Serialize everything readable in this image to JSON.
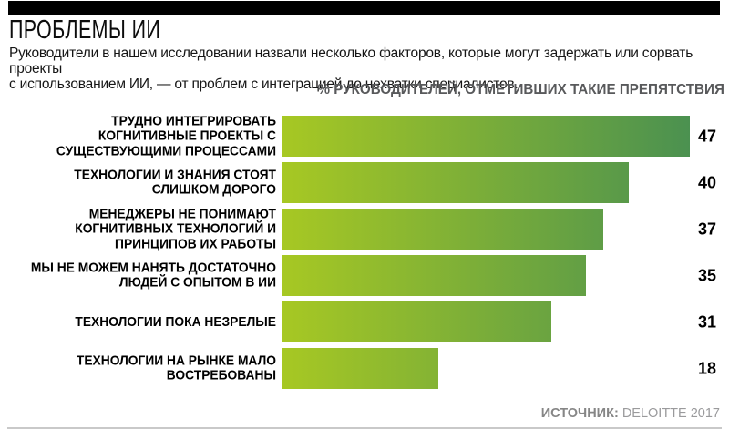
{
  "header": {
    "title": "ПРОБЛЕМЫ ИИ",
    "subtitle_lines": [
      "Руководители в нашем исследовании назвали несколько факторов, которые могут задержать или сорвать проекты",
      "с использованием ИИ, — от проблем с интеграцией до нехватки специалистов."
    ]
  },
  "chart_data": {
    "type": "bar",
    "orientation": "horizontal",
    "title": "ПРОБЛЕМЫ ИИ",
    "xlabel": "% РУКОВОДИТЕЛЕЙ, ОТМЕТИВШИХ ТАКИЕ ПРЕПЯТСТВИЯ",
    "xlim": [
      0,
      50
    ],
    "grid": false,
    "legend": false,
    "value_labels_position": "right-of-bars",
    "bar_gradient": [
      "#a7c823",
      "#4b9150"
    ],
    "categories": [
      "ТРУДНО ИНТЕГРИРОВАТЬ КОГНИТИВНЫЕ ПРОЕКТЫ С СУЩЕСТВУЮЩИМИ ПРОЦЕССАМИ",
      "ТЕХНОЛОГИИ И ЗНАНИЯ СТОЯТ СЛИШКОМ ДОРОГО",
      "МЕНЕДЖЕРЫ НЕ ПОНИМАЮТ КОГНИТИВНЫХ ТЕХНОЛОГИЙ И ПРИНЦИПОВ ИХ РАБОТЫ",
      "МЫ НЕ МОЖЕМ НАНЯТЬ ДОСТАТОЧНО ЛЮДЕЙ С ОПЫТОМ В ИИ",
      "ТЕХНОЛОГИИ ПОКА НЕЗРЕЛЫЕ",
      "ТЕХНОЛОГИИ НА РЫНКЕ МАЛО ВОСТРЕБОВАНЫ"
    ],
    "values": [
      47,
      40,
      37,
      35,
      31,
      18
    ],
    "rows": [
      {
        "label_lines": [
          "ТРУДНО ИНТЕГРИРОВАТЬ",
          "КОГНИТИВНЫЕ ПРОЕКТЫ С",
          "СУЩЕСТВУЮЩИМИ ПРОЦЕССАМИ"
        ],
        "value": "47"
      },
      {
        "label_lines": [
          "ТЕХНОЛОГИИ И ЗНАНИЯ СТОЯТ",
          "СЛИШКОМ ДОРОГО"
        ],
        "value": "40"
      },
      {
        "label_lines": [
          "МЕНЕДЖЕРЫ НЕ ПОНИМАЮТ",
          "КОГНИТИВНЫХ ТЕХНОЛОГИЙ И",
          "ПРИНЦИПОВ ИХ РАБОТЫ"
        ],
        "value": "37"
      },
      {
        "label_lines": [
          "МЫ НЕ МОЖЕМ НАНЯТЬ ДОСТАТОЧНО",
          "ЛЮДЕЙ С ОПЫТОМ В ИИ"
        ],
        "value": "35"
      },
      {
        "label_lines": [
          "ТЕХНОЛОГИИ ПОКА НЕЗРЕЛЫЕ"
        ],
        "value": "31"
      },
      {
        "label_lines": [
          "ТЕХНОЛОГИИ НА РЫНКЕ МАЛО",
          "ВОСТРЕБОВАНЫ"
        ],
        "value": "18"
      }
    ]
  },
  "footer": {
    "source_label": "ИСТОЧНИК:",
    "source_value": "DELOITTE 2017"
  },
  "colors": {
    "top_bar": "#000000",
    "bar_start": "#a7c823",
    "bar_end": "#4b9150",
    "axis_note_gray": "#58595b",
    "source_gray": "#9a9a9c",
    "text_black": "#000000"
  }
}
